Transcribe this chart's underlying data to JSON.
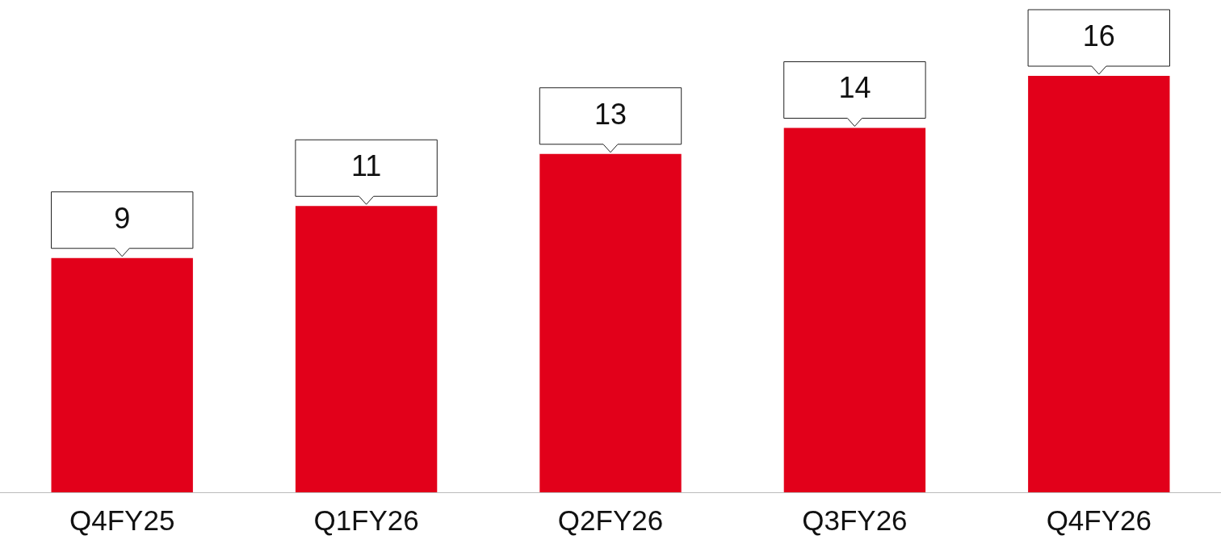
{
  "chart_data": {
    "type": "bar",
    "categories": [
      "Q4FY25",
      "Q1FY26",
      "Q2FY26",
      "Q3FY26",
      "Q4FY26"
    ],
    "values": [
      9,
      11,
      13,
      14,
      16
    ],
    "color": "#e2001a",
    "data_labels": true,
    "grid": false,
    "legend": false
  }
}
